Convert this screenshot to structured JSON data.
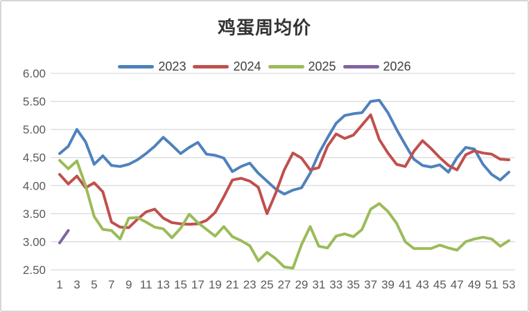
{
  "title": "鸡蛋周均价",
  "colors": {
    "blue_2023": "#4F81BD",
    "red_2024": "#C0504D",
    "green_2025": "#9BBB59",
    "purple_2026": "#8064A2",
    "gridline": "#D9D9D9",
    "tick_text": "#595959",
    "legend_text": "#404040",
    "title_text": "#333333",
    "background": "#FFFFFF"
  },
  "legend": [
    {
      "label": "2023",
      "color": "#4F81BD"
    },
    {
      "label": "2024",
      "color": "#C0504D"
    },
    {
      "label": "2025",
      "color": "#9BBB59"
    },
    {
      "label": "2026",
      "color": "#8064A2"
    }
  ],
  "chart_data": {
    "type": "line",
    "title": "鸡蛋周均价",
    "xlabel": "",
    "ylabel": "",
    "x_range": [
      1,
      53
    ],
    "ylim": [
      2.5,
      6.0
    ],
    "grid": "horizontal-only",
    "legend_position": "top-center",
    "xticks": [
      1,
      3,
      5,
      7,
      9,
      11,
      13,
      15,
      17,
      19,
      21,
      23,
      25,
      27,
      29,
      31,
      33,
      35,
      37,
      39,
      41,
      43,
      45,
      47,
      49,
      51,
      53
    ],
    "yticks": [
      "6.00",
      "5.50",
      "5.00",
      "4.50",
      "4.00",
      "3.50",
      "3.00",
      "2.50"
    ],
    "series": [
      {
        "name": "2023",
        "color": "#4F81BD",
        "start_week": 1,
        "values": [
          4.57,
          4.7,
          5.0,
          4.78,
          4.38,
          4.53,
          4.36,
          4.34,
          4.38,
          4.46,
          4.57,
          4.7,
          4.86,
          4.72,
          4.57,
          4.68,
          4.77,
          4.56,
          4.54,
          4.49,
          4.25,
          4.34,
          4.4,
          4.22,
          4.08,
          3.94,
          3.85,
          3.92,
          3.96,
          4.22,
          4.57,
          4.85,
          5.11,
          5.25,
          5.28,
          5.3,
          5.5,
          5.52,
          5.3,
          5.0,
          4.73,
          4.47,
          4.36,
          4.33,
          4.37,
          4.24,
          4.5,
          4.68,
          4.65,
          4.38,
          4.2,
          4.1,
          4.24
        ]
      },
      {
        "name": "2024",
        "color": "#C0504D",
        "start_week": 1,
        "values": [
          4.2,
          4.03,
          4.17,
          3.96,
          4.05,
          3.89,
          3.35,
          3.26,
          3.25,
          3.4,
          3.53,
          3.58,
          3.42,
          3.34,
          3.32,
          3.31,
          3.32,
          3.38,
          3.52,
          3.8,
          4.1,
          4.13,
          4.08,
          3.97,
          3.5,
          3.86,
          4.28,
          4.58,
          4.49,
          4.28,
          4.32,
          4.7,
          4.92,
          4.84,
          4.9,
          5.08,
          5.26,
          4.82,
          4.58,
          4.38,
          4.34,
          4.61,
          4.8,
          4.66,
          4.5,
          4.36,
          4.28,
          4.55,
          4.62,
          4.58,
          4.56,
          4.47,
          4.46
        ]
      },
      {
        "name": "2025",
        "color": "#9BBB59",
        "start_week": 1,
        "values": [
          4.45,
          4.3,
          4.44,
          4.0,
          3.45,
          3.22,
          3.2,
          3.05,
          3.42,
          3.43,
          3.35,
          3.26,
          3.23,
          3.07,
          3.24,
          3.49,
          3.34,
          3.22,
          3.1,
          3.27,
          3.09,
          3.02,
          2.93,
          2.66,
          2.81,
          2.7,
          2.55,
          2.53,
          2.95,
          3.27,
          2.92,
          2.89,
          3.1,
          3.14,
          3.09,
          3.22,
          3.58,
          3.68,
          3.54,
          3.33,
          3.0,
          2.88,
          2.88,
          2.88,
          2.94,
          2.89,
          2.85,
          3.0,
          3.05,
          3.08,
          3.05,
          2.92,
          3.02
        ]
      },
      {
        "name": "2026",
        "color": "#8064A2",
        "start_week": 1,
        "values": [
          2.98,
          3.2
        ]
      }
    ]
  }
}
